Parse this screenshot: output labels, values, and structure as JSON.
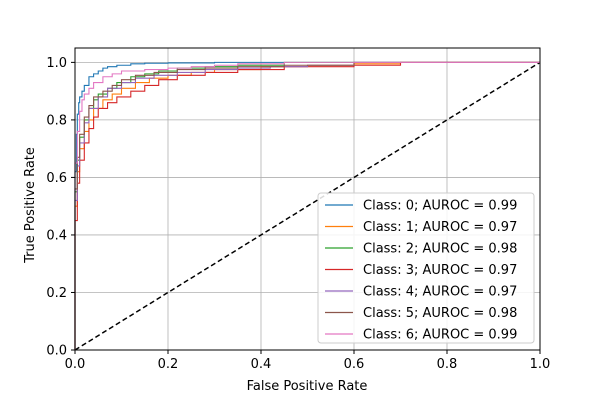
{
  "chart_data": {
    "type": "line",
    "title": "",
    "xlabel": "False Positive Rate",
    "ylabel": "True Positive Rate",
    "xlim": [
      0.0,
      1.0
    ],
    "ylim": [
      0.0,
      1.05
    ],
    "x_ticks": [
      "0.0",
      "0.2",
      "0.4",
      "0.6",
      "0.8",
      "1.0"
    ],
    "y_ticks": [
      "0.0",
      "0.2",
      "0.4",
      "0.6",
      "0.8",
      "1.0"
    ],
    "grid": true,
    "legend_position": "lower-right",
    "reference_line": {
      "x": [
        0,
        1
      ],
      "y": [
        0,
        1
      ],
      "style": "dashed",
      "color": "#000000"
    },
    "series": [
      {
        "name": "Class: 0; AUROC = 0.99",
        "color": "#1f77b4",
        "x": [
          0.0,
          0.0,
          0.003,
          0.005,
          0.008,
          0.01,
          0.015,
          0.02,
          0.03,
          0.04,
          0.05,
          0.06,
          0.07,
          0.09,
          0.12,
          0.15,
          0.2,
          0.3,
          1.0
        ],
        "y": [
          0.0,
          0.62,
          0.75,
          0.82,
          0.86,
          0.88,
          0.9,
          0.92,
          0.95,
          0.96,
          0.97,
          0.98,
          0.985,
          0.99,
          0.995,
          0.997,
          0.998,
          1.0,
          1.0
        ]
      },
      {
        "name": "Class: 1; AUROC = 0.97",
        "color": "#ff7f0e",
        "x": [
          0.0,
          0.0,
          0.005,
          0.01,
          0.02,
          0.03,
          0.04,
          0.06,
          0.08,
          0.1,
          0.13,
          0.16,
          0.2,
          0.25,
          0.3,
          0.4,
          0.5,
          0.6,
          0.7,
          1.0
        ],
        "y": [
          0.0,
          0.5,
          0.62,
          0.7,
          0.76,
          0.8,
          0.84,
          0.87,
          0.89,
          0.91,
          0.93,
          0.945,
          0.955,
          0.965,
          0.975,
          0.985,
          0.99,
          0.995,
          1.0,
          1.0
        ]
      },
      {
        "name": "Class: 2; AUROC = 0.98",
        "color": "#2ca02c",
        "x": [
          0.0,
          0.0,
          0.005,
          0.01,
          0.02,
          0.03,
          0.04,
          0.05,
          0.07,
          0.09,
          0.12,
          0.15,
          0.18,
          0.22,
          0.28,
          0.35,
          0.45,
          1.0
        ],
        "y": [
          0.0,
          0.55,
          0.66,
          0.74,
          0.8,
          0.84,
          0.87,
          0.89,
          0.91,
          0.93,
          0.95,
          0.96,
          0.97,
          0.98,
          0.985,
          0.99,
          1.0,
          1.0
        ]
      },
      {
        "name": "Class: 3; AUROC = 0.97",
        "color": "#d62728",
        "x": [
          0.0,
          0.0,
          0.005,
          0.01,
          0.02,
          0.03,
          0.04,
          0.05,
          0.07,
          0.09,
          0.12,
          0.15,
          0.18,
          0.22,
          0.28,
          0.35,
          0.45,
          0.6,
          0.7,
          1.0
        ],
        "y": [
          0.0,
          0.45,
          0.58,
          0.66,
          0.72,
          0.77,
          0.81,
          0.84,
          0.86,
          0.88,
          0.9,
          0.92,
          0.94,
          0.955,
          0.965,
          0.975,
          0.985,
          0.99,
          1.0,
          1.0
        ]
      },
      {
        "name": "Class: 4; AUROC = 0.97",
        "color": "#9467bd",
        "x": [
          0.0,
          0.0,
          0.005,
          0.01,
          0.02,
          0.03,
          0.05,
          0.07,
          0.1,
          0.13,
          0.17,
          0.22,
          0.28,
          0.35,
          0.42,
          0.5,
          0.6,
          1.0
        ],
        "y": [
          0.0,
          0.52,
          0.64,
          0.72,
          0.79,
          0.84,
          0.88,
          0.91,
          0.93,
          0.945,
          0.955,
          0.965,
          0.975,
          0.98,
          0.985,
          0.99,
          1.0,
          1.0
        ]
      },
      {
        "name": "Class: 5; AUROC = 0.98",
        "color": "#8c564b",
        "x": [
          0.0,
          0.0,
          0.005,
          0.01,
          0.02,
          0.03,
          0.04,
          0.06,
          0.08,
          0.1,
          0.13,
          0.17,
          0.22,
          0.28,
          0.35,
          0.45,
          0.6,
          1.0
        ],
        "y": [
          0.0,
          0.56,
          0.67,
          0.75,
          0.81,
          0.85,
          0.88,
          0.9,
          0.92,
          0.94,
          0.955,
          0.965,
          0.975,
          0.98,
          0.985,
          0.99,
          1.0,
          1.0
        ]
      },
      {
        "name": "Class: 6; AUROC = 0.99",
        "color": "#e377c2",
        "x": [
          0.0,
          0.0,
          0.005,
          0.01,
          0.015,
          0.02,
          0.03,
          0.04,
          0.06,
          0.08,
          0.1,
          0.15,
          0.2,
          0.25,
          0.3,
          0.35,
          0.45,
          1.0
        ],
        "y": [
          0.0,
          0.65,
          0.76,
          0.83,
          0.87,
          0.89,
          0.91,
          0.93,
          0.95,
          0.96,
          0.97,
          0.975,
          0.98,
          0.985,
          0.99,
          0.995,
          1.0,
          1.0
        ]
      }
    ]
  }
}
